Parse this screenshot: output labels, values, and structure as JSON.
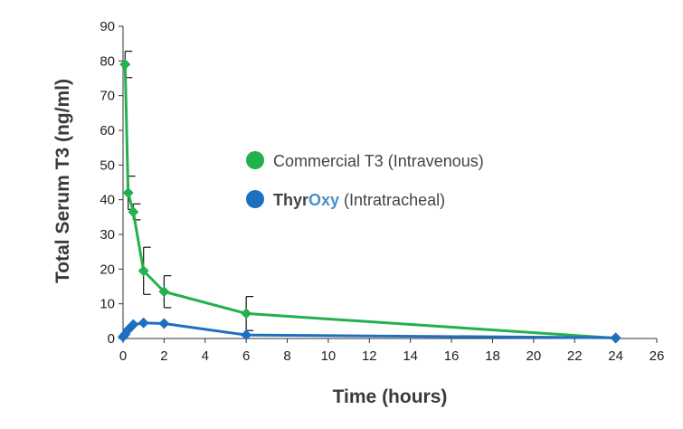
{
  "chart_data": {
    "type": "line",
    "xlabel": "Time (hours)",
    "ylabel": "Total Serum T3 (ng/ml)",
    "xlim": [
      0,
      26
    ],
    "ylim": [
      0,
      90
    ],
    "xticks": [
      0,
      2,
      4,
      6,
      8,
      10,
      12,
      14,
      16,
      18,
      20,
      22,
      24,
      26
    ],
    "yticks": [
      0,
      10,
      20,
      30,
      40,
      50,
      60,
      70,
      80,
      90
    ],
    "grid": false,
    "legend_position": "center-right",
    "series": [
      {
        "legend_label": "Commercial T3 (Intravenous)",
        "color": "#22b14c",
        "marker": "diamond",
        "x": [
          0.1,
          0.25,
          0.5,
          1,
          2,
          6,
          24
        ],
        "y": [
          79,
          42,
          36.5,
          19.5,
          13.5,
          7.2,
          0.1
        ],
        "error": [
          3.8,
          4.8,
          2.3,
          6.8,
          4.6,
          4.9,
          0
        ]
      },
      {
        "legend_parts": [
          "Thyr",
          "Oxy",
          " (Intratracheal)"
        ],
        "legend_parts_colors": [
          "#444444",
          "#4a90c8",
          "#444444"
        ],
        "color": "#1f6fc1",
        "marker": "diamond",
        "x": [
          0,
          0.1,
          0.25,
          0.5,
          1,
          2,
          6,
          24
        ],
        "y": [
          0.5,
          1.2,
          2.5,
          4.0,
          4.5,
          4.3,
          1.0,
          0.2
        ],
        "error": [
          0,
          0,
          0,
          0,
          0,
          0,
          0,
          0
        ]
      }
    ]
  }
}
